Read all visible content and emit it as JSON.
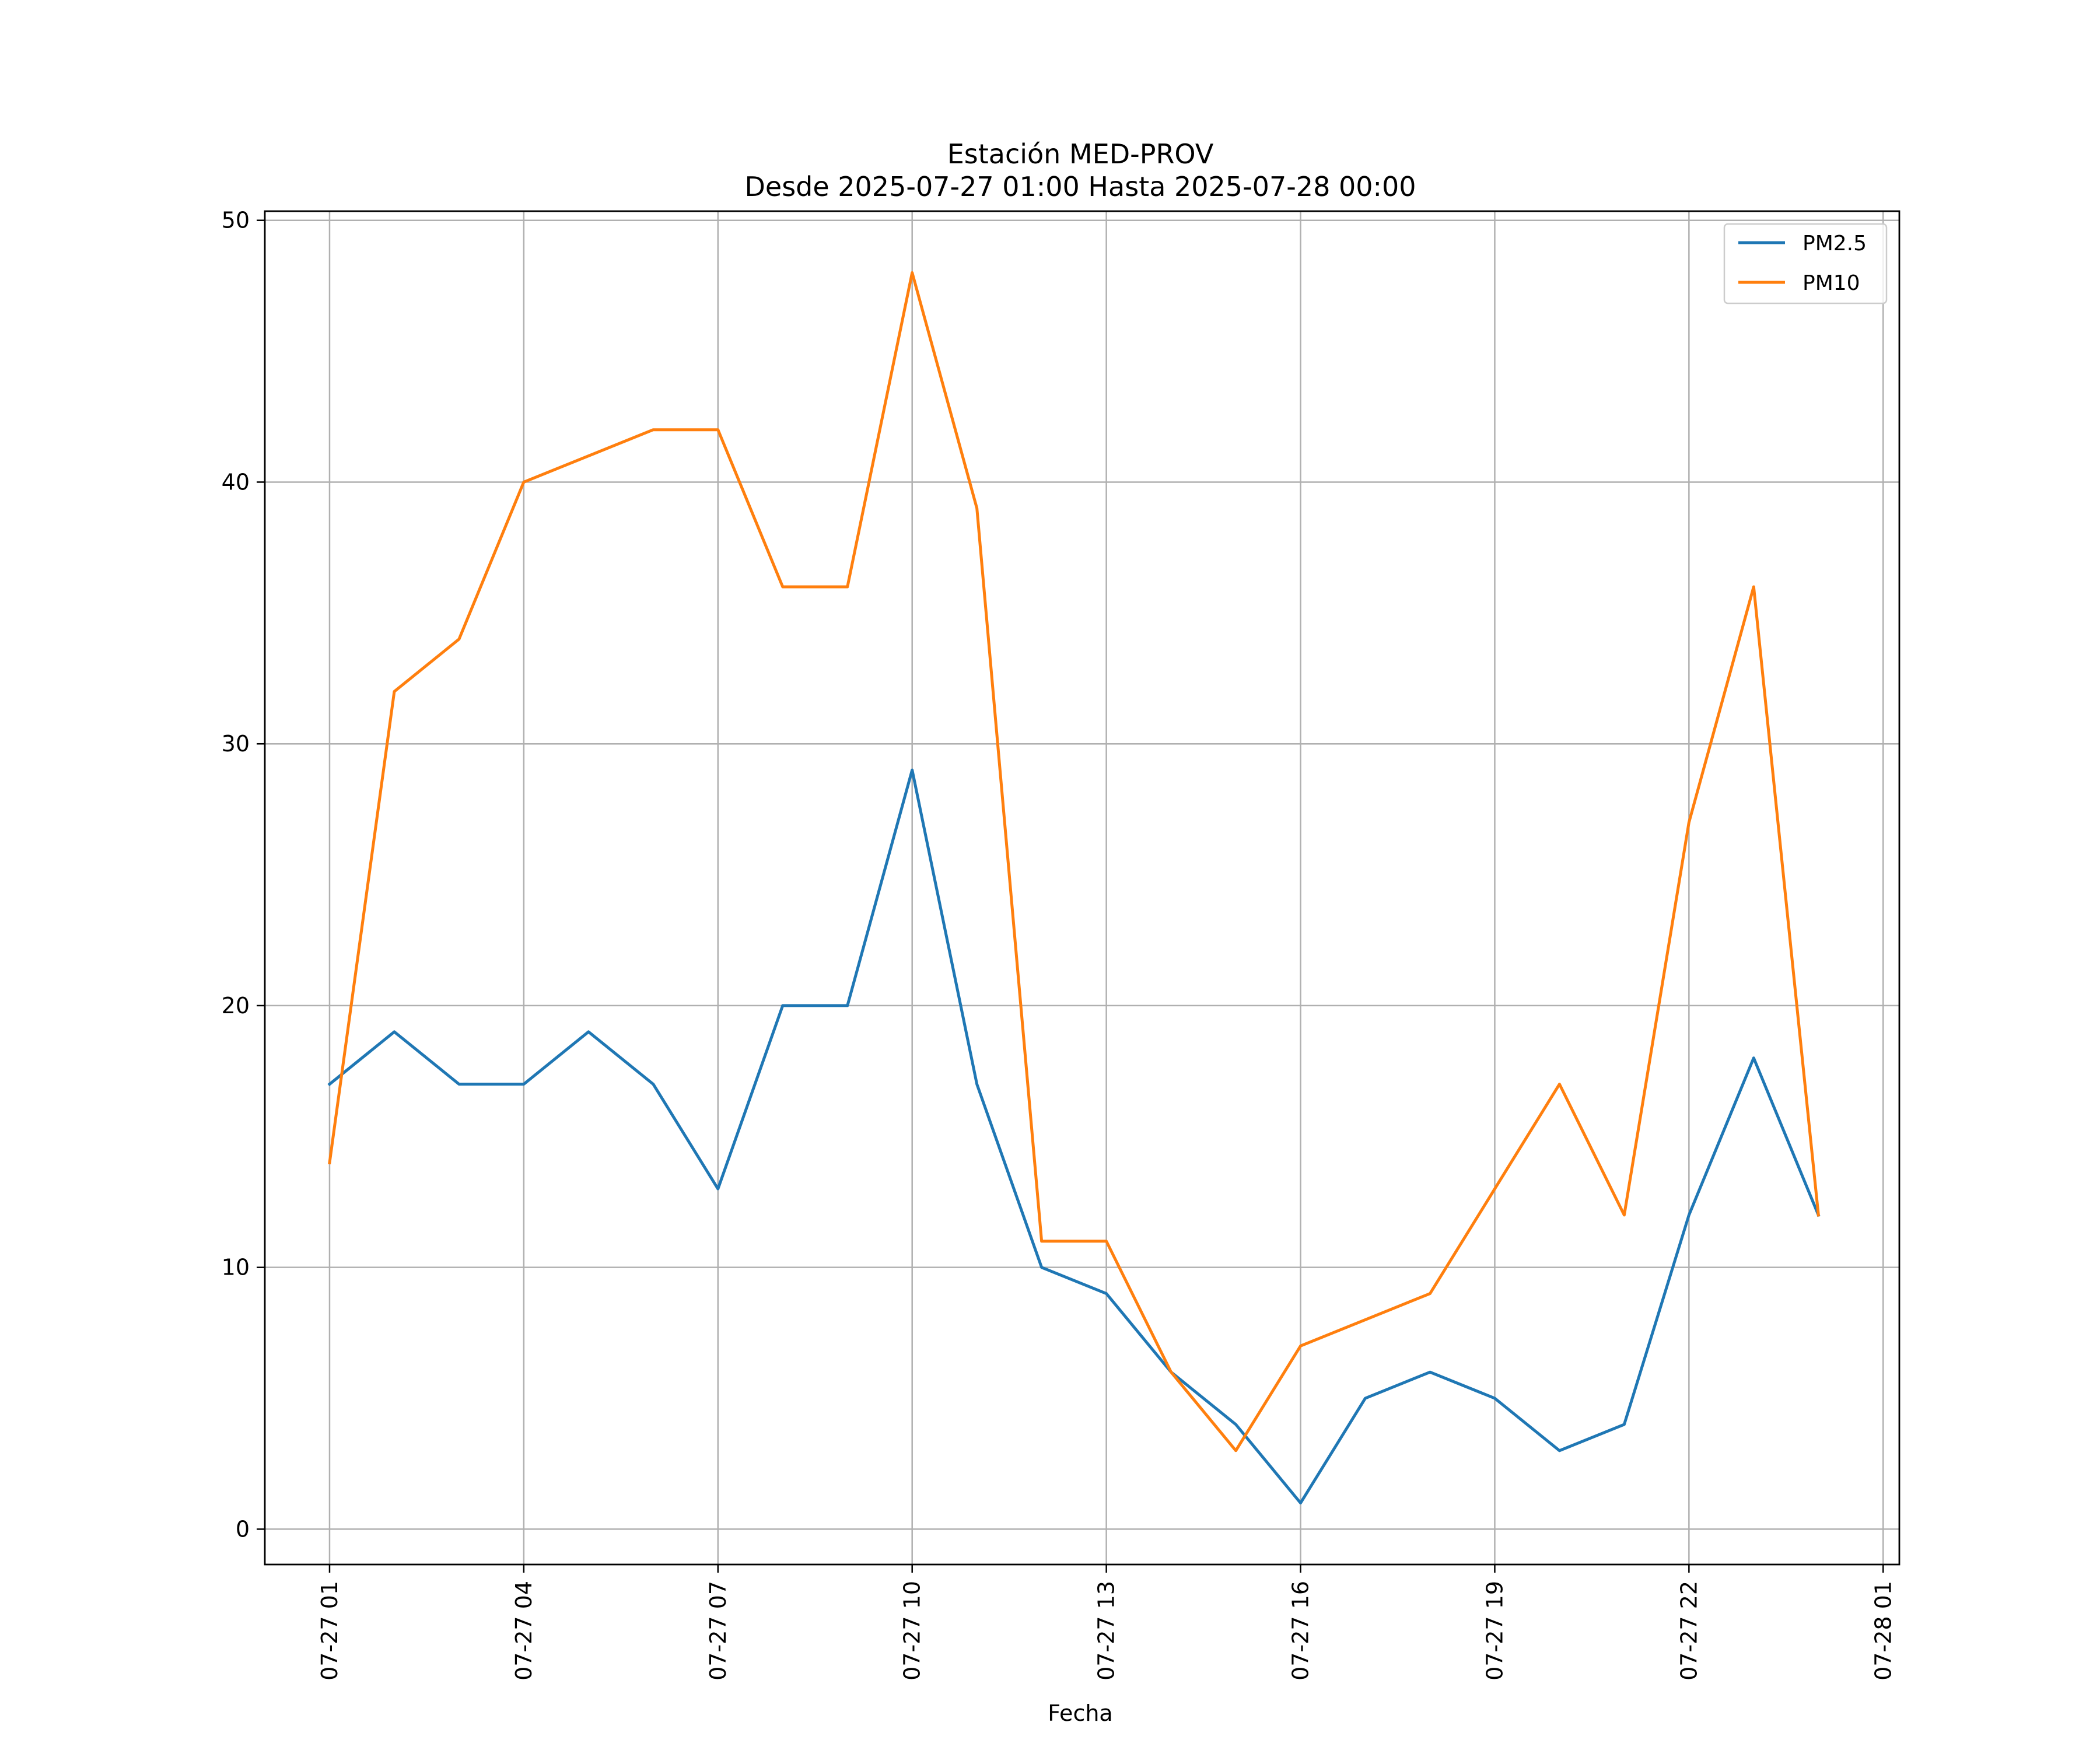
{
  "chart_data": {
    "type": "line",
    "title": "Estación MED-PROV",
    "subtitle": "Desde 2025-07-27 01:00 Hasta 2025-07-28 00:00",
    "xlabel": "Fecha",
    "ylabel": "",
    "x": [
      "2025-07-27 01:00",
      "2025-07-27 02:00",
      "2025-07-27 03:00",
      "2025-07-27 04:00",
      "2025-07-27 05:00",
      "2025-07-27 06:00",
      "2025-07-27 07:00",
      "2025-07-27 08:00",
      "2025-07-27 09:00",
      "2025-07-27 10:00",
      "2025-07-27 11:00",
      "2025-07-27 12:00",
      "2025-07-27 13:00",
      "2025-07-27 14:00",
      "2025-07-27 15:00",
      "2025-07-27 16:00",
      "2025-07-27 17:00",
      "2025-07-27 18:00",
      "2025-07-27 19:00",
      "2025-07-27 20:00",
      "2025-07-27 21:00",
      "2025-07-27 22:00",
      "2025-07-27 23:00",
      "2025-07-28 00:00"
    ],
    "series": [
      {
        "name": "PM2.5",
        "color": "#1f77b4",
        "values": [
          17,
          19,
          17,
          17,
          19,
          17,
          13,
          20,
          20,
          29,
          17,
          10,
          9,
          6,
          4,
          1,
          5,
          6,
          5,
          3,
          4,
          12,
          18,
          12
        ]
      },
      {
        "name": "PM10",
        "color": "#ff7f0e",
        "values": [
          14,
          32,
          34,
          40,
          41,
          42,
          42,
          36,
          36,
          48,
          39,
          11,
          11,
          6,
          3,
          7,
          8,
          9,
          13,
          17,
          12,
          27,
          36,
          12
        ]
      }
    ],
    "xlim": [
      "2025-07-27 00:00",
      "2025-07-28 01:15"
    ],
    "ylim": [
      -1.35,
      50.35
    ],
    "x_ticks": [
      {
        "x": "2025-07-27 01:00",
        "label": "07-27 01"
      },
      {
        "x": "2025-07-27 04:00",
        "label": "07-27 04"
      },
      {
        "x": "2025-07-27 07:00",
        "label": "07-27 07"
      },
      {
        "x": "2025-07-27 10:00",
        "label": "07-27 10"
      },
      {
        "x": "2025-07-27 13:00",
        "label": "07-27 13"
      },
      {
        "x": "2025-07-27 16:00",
        "label": "07-27 16"
      },
      {
        "x": "2025-07-27 19:00",
        "label": "07-27 19"
      },
      {
        "x": "2025-07-27 22:00",
        "label": "07-27 22"
      },
      {
        "x": "2025-07-28 01:00",
        "label": "07-28 01"
      }
    ],
    "y_ticks": [
      {
        "y": 0,
        "label": "0"
      },
      {
        "y": 10,
        "label": "10"
      },
      {
        "y": 20,
        "label": "20"
      },
      {
        "y": 30,
        "label": "30"
      },
      {
        "y": 40,
        "label": "40"
      },
      {
        "y": 50,
        "label": "50"
      }
    ],
    "grid": true,
    "legend_position": "top-right"
  }
}
